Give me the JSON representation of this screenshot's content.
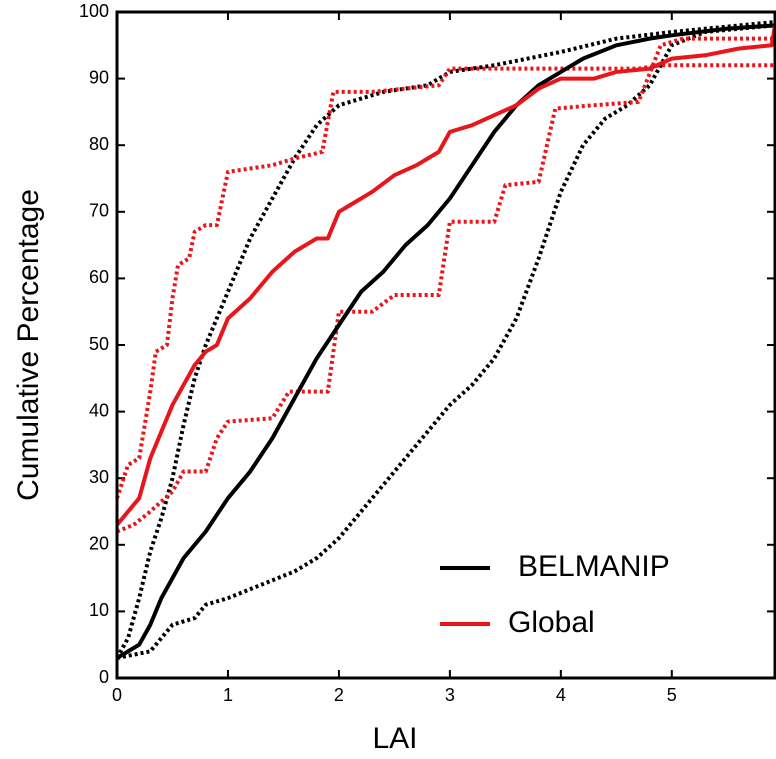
{
  "chart_data": {
    "type": "line",
    "x_label": "LAI",
    "y_label": "Cumulative Percentage",
    "xlim": [
      0,
      5.93
    ],
    "ylim": [
      0,
      100
    ],
    "xticks": [
      0,
      1,
      2,
      3,
      4,
      5
    ],
    "yticks": [
      0,
      10,
      20,
      30,
      40,
      50,
      60,
      70,
      80,
      90,
      100
    ],
    "legend": "lower right",
    "series": [
      {
        "color": "#000000",
        "dashed": true,
        "x": [
          0,
          0.1,
          0.2,
          0.3,
          0.4,
          0.5,
          0.6,
          0.7,
          0.8,
          0.9,
          1.0,
          1.2,
          1.4,
          1.6,
          1.8,
          2.0,
          2.4,
          2.8,
          3.0,
          3.4,
          4.0,
          4.5,
          5.0,
          5.93
        ],
        "values": [
          3,
          6,
          12,
          19,
          24,
          30,
          38,
          45,
          50,
          54,
          58,
          66,
          72,
          78,
          83,
          86,
          88,
          89,
          91,
          92,
          94,
          96,
          97,
          98.5
        ]
      },
      {
        "color": "#000000",
        "dashed": true,
        "x": [
          0,
          0.3,
          0.5,
          0.7,
          0.8,
          1.0,
          1.3,
          1.6,
          1.8,
          2.0,
          2.2,
          2.4,
          2.6,
          2.8,
          3.0,
          3.2,
          3.4,
          3.6,
          3.8,
          4.0,
          4.2,
          4.4,
          4.6,
          4.8,
          5.0,
          5.3,
          5.93
        ],
        "values": [
          3,
          4,
          8,
          9,
          11,
          12,
          14,
          16,
          18,
          21,
          25,
          29,
          33,
          37,
          41,
          44,
          48,
          54,
          63,
          73,
          80,
          84,
          86,
          89,
          95,
          97,
          98
        ]
      },
      {
        "color": "#e8161b",
        "dashed": true,
        "x": [
          0,
          0.1,
          0.2,
          0.3,
          0.35,
          0.45,
          0.5,
          0.55,
          0.65,
          0.7,
          0.8,
          0.9,
          1.0,
          1.4,
          1.6,
          1.85,
          1.95,
          2.3,
          2.6,
          2.9,
          3.0,
          3.8,
          4.3,
          4.7,
          4.9,
          5.1,
          5.93
        ],
        "values": [
          27,
          32,
          33,
          43,
          49,
          50,
          57,
          62,
          63,
          67,
          68,
          68,
          76,
          77,
          78,
          79,
          88,
          88,
          88.5,
          89,
          91.5,
          91.5,
          91.5,
          91.5,
          92,
          92,
          92
        ]
      },
      {
        "color": "#e8161b",
        "dashed": true,
        "x": [
          0,
          0.15,
          0.3,
          0.5,
          0.6,
          0.8,
          0.9,
          1.0,
          1.4,
          1.55,
          1.9,
          2.0,
          2.3,
          2.5,
          2.9,
          3.0,
          3.4,
          3.5,
          3.8,
          3.95,
          4.3,
          4.7,
          4.9,
          5.1,
          5.93
        ],
        "values": [
          22,
          23,
          25,
          28,
          31,
          31,
          36,
          38.5,
          39,
          43,
          43,
          55,
          55,
          57.5,
          57.5,
          68.5,
          68.5,
          74,
          74.5,
          85.5,
          86,
          86.5,
          95,
          96,
          96
        ]
      },
      {
        "name": "BELMANIP",
        "color": "#000000",
        "x": [
          0,
          0.2,
          0.3,
          0.4,
          0.5,
          0.6,
          0.8,
          1.0,
          1.2,
          1.4,
          1.6,
          1.8,
          2.0,
          2.2,
          2.4,
          2.6,
          2.8,
          3.0,
          3.2,
          3.4,
          3.6,
          3.8,
          4.0,
          4.2,
          4.5,
          4.8,
          5.0,
          5.5,
          5.93
        ],
        "values": [
          3,
          5,
          8,
          12,
          15,
          18,
          22,
          27,
          31,
          36,
          42,
          48,
          53,
          58,
          61,
          65,
          68,
          72,
          77,
          82,
          86,
          89,
          91,
          93,
          95,
          96,
          96.5,
          97.5,
          98
        ]
      },
      {
        "name": "Global",
        "color": "#e8161b",
        "x": [
          0,
          0.1,
          0.2,
          0.3,
          0.4,
          0.5,
          0.6,
          0.7,
          0.8,
          0.9,
          1.0,
          1.2,
          1.4,
          1.6,
          1.8,
          1.9,
          2.0,
          2.1,
          2.3,
          2.5,
          2.7,
          2.9,
          3.0,
          3.2,
          3.4,
          3.6,
          3.8,
          4.0,
          4.3,
          4.5,
          4.8,
          5.0,
          5.3,
          5.6,
          5.9,
          5.93
        ],
        "values": [
          23,
          25,
          27,
          33,
          37,
          41,
          44,
          47,
          49,
          50,
          54,
          57,
          61,
          64,
          66,
          66,
          70,
          71,
          73,
          75.5,
          77,
          79,
          82,
          83,
          84.5,
          86,
          88.5,
          90,
          90,
          91,
          91.5,
          93,
          93.5,
          94.5,
          95,
          98
        ]
      }
    ]
  }
}
